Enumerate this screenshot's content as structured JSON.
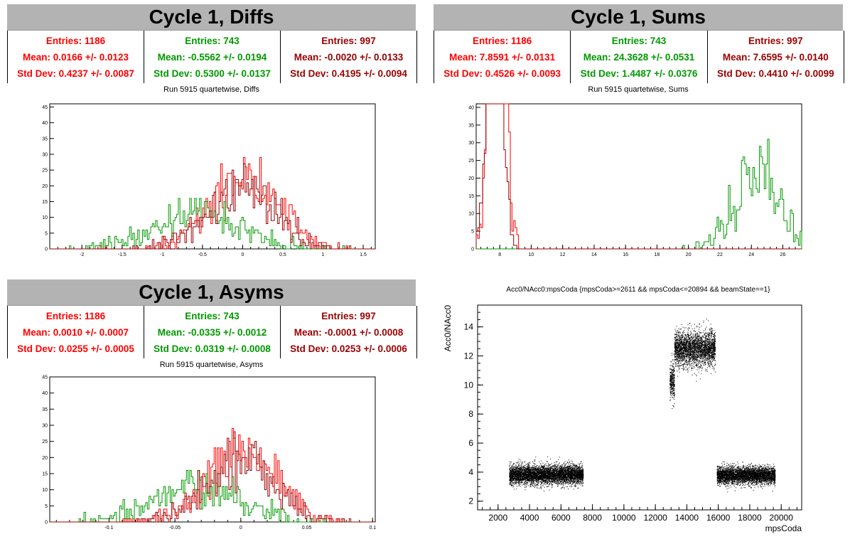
{
  "panels": {
    "diffs": {
      "title": "Cycle 1, Diffs",
      "subtitle": "Run 5915 quartetwise, Diffs",
      "stats": [
        {
          "entries": "Entries: 1186",
          "mean": "Mean: 0.0166 +/- 0.0123",
          "std": "Std Dev: 0.4237 +/- 0.0087",
          "color": "#ff0000"
        },
        {
          "entries": "Entries: 743",
          "mean": "Mean: -0.5562 +/- 0.0194",
          "std": "Std Dev: 0.5300 +/- 0.0137",
          "color": "#009900"
        },
        {
          "entries": "Entries: 997",
          "mean": "Mean: -0.0020 +/- 0.0133",
          "std": "Std Dev: 0.4195 +/- 0.0094",
          "color": "#990000"
        }
      ]
    },
    "sums": {
      "title": "Cycle 1, Sums",
      "subtitle": "Run 5915 quartetwise, Sums",
      "stats": [
        {
          "entries": "Entries: 1186",
          "mean": "Mean: 7.8591 +/- 0.0131",
          "std": "Std Dev: 0.4526 +/- 0.0093",
          "color": "#ff0000"
        },
        {
          "entries": "Entries: 743",
          "mean": "Mean: 24.3628 +/- 0.0531",
          "std": "Std Dev: 1.4487 +/- 0.0376",
          "color": "#009900"
        },
        {
          "entries": "Entries: 997",
          "mean": "Mean: 7.6595 +/- 0.0140",
          "std": "Std Dev: 0.4410 +/- 0.0099",
          "color": "#990000"
        }
      ]
    },
    "asyms": {
      "title": "Cycle 1, Asyms",
      "subtitle": "Run 5915 quartetwise, Asyms",
      "stats": [
        {
          "entries": "Entries: 1186",
          "mean": "Mean: 0.0010 +/- 0.0007",
          "std": "Std Dev: 0.0255 +/- 0.0005",
          "color": "#ff0000"
        },
        {
          "entries": "Entries: 743",
          "mean": "Mean: -0.0335 +/- 0.0012",
          "std": "Std Dev: 0.0319 +/- 0.0008",
          "color": "#009900"
        },
        {
          "entries": "Entries: 997",
          "mean": "Mean: -0.0001 +/- 0.0008",
          "std": "Std Dev: 0.0253 +/- 0.0006",
          "color": "#990000"
        }
      ]
    },
    "scatter": {
      "title": "Acc0/NAcc0:mpsCoda {mpsCoda>=2611 && mpsCoda<=20894 && beamState==1}"
    }
  },
  "chart_data": [
    {
      "type": "bar",
      "id": "diffs",
      "title": "Run 5915 quartetwise, Diffs",
      "xlim": [
        -2.4,
        1.65
      ],
      "ylim": [
        0,
        46
      ],
      "xticks": [
        -2,
        -1.5,
        -1,
        -0.5,
        0,
        0.5,
        1,
        1.5
      ],
      "xtick_labels": [
        "-2",
        "-1.5",
        "-1",
        "-0.5",
        "0",
        "0.5",
        "1",
        "1.5"
      ],
      "yticks": [
        0,
        5,
        10,
        15,
        20,
        25,
        30,
        35,
        40,
        45
      ],
      "series": [
        {
          "mean": 0.0166,
          "std": 0.4237,
          "entries": 1186,
          "color": "#ff0000"
        },
        {
          "mean": -0.5562,
          "std": 0.53,
          "entries": 743,
          "color": "#009900"
        },
        {
          "mean": -0.002,
          "std": 0.4195,
          "entries": 997,
          "color": "#990000"
        }
      ]
    },
    {
      "type": "bar",
      "id": "sums",
      "title": "Run 5915 quartetwise, Sums",
      "xlim": [
        6.5,
        27.2
      ],
      "ylim": [
        0,
        41
      ],
      "xticks": [
        8,
        10,
        12,
        14,
        16,
        18,
        20,
        22,
        24,
        26
      ],
      "xtick_labels": [
        "8",
        "10",
        "12",
        "14",
        "16",
        "18",
        "20",
        "22",
        "24",
        "26"
      ],
      "yticks": [
        0,
        5,
        10,
        15,
        20,
        25,
        30,
        35,
        40
      ],
      "series": [
        {
          "mean": 7.8591,
          "std": 0.4526,
          "entries": 1186,
          "color": "#ff0000"
        },
        {
          "mean": 24.3628,
          "std": 1.4487,
          "entries": 743,
          "color": "#009900"
        },
        {
          "mean": 7.6595,
          "std": 0.441,
          "entries": 997,
          "color": "#990000"
        }
      ]
    },
    {
      "type": "bar",
      "id": "asyms",
      "title": "Run 5915 quartetwise, Asyms",
      "xlim": [
        -0.145,
        0.102
      ],
      "ylim": [
        0,
        45
      ],
      "xticks": [
        -0.1,
        -0.05,
        0,
        0.05,
        0.1
      ],
      "xtick_labels": [
        "-0.1",
        "-0.05",
        "0",
        "0.05",
        "0.1"
      ],
      "yticks": [
        0,
        5,
        10,
        15,
        20,
        25,
        30,
        35,
        40,
        45
      ],
      "series": [
        {
          "mean": 0.001,
          "std": 0.0255,
          "entries": 1186,
          "color": "#ff0000"
        },
        {
          "mean": -0.0335,
          "std": 0.0319,
          "entries": 743,
          "color": "#009900"
        },
        {
          "mean": -0.0001,
          "std": 0.0253,
          "entries": 997,
          "color": "#990000"
        }
      ]
    },
    {
      "type": "scatter",
      "id": "scatter",
      "title": "Acc0/NAcc0:mpsCoda {mpsCoda>=2611 && mpsCoda<=20894 && beamState==1}",
      "xlabel": "mpsCoda",
      "ylabel": "Acc0/NAcc0",
      "xlim": [
        700,
        21300
      ],
      "ylim": [
        1.4,
        15.5
      ],
      "xticks": [
        2000,
        4000,
        6000,
        8000,
        10000,
        12000,
        14000,
        16000,
        18000,
        20000
      ],
      "xtick_labels": [
        "2000",
        "4000",
        "6000",
        "8000",
        "10000",
        "12000",
        "14000",
        "16000",
        "18000",
        "20000"
      ],
      "yticks": [
        2,
        4,
        6,
        8,
        10,
        12,
        14
      ],
      "ytick_labels": [
        "2",
        "4",
        "6",
        "8",
        "10",
        "12",
        "14"
      ],
      "clusters": [
        {
          "xrange": [
            2700,
            7400
          ],
          "ymean": 3.85,
          "ystd": 0.32
        },
        {
          "xrange": [
            12900,
            13200
          ],
          "ymean": 10.3,
          "ystd": 0.6
        },
        {
          "xrange": [
            13200,
            15800
          ],
          "ymean": 12.5,
          "ystd": 0.6
        },
        {
          "xrange": [
            15900,
            19600
          ],
          "ymean": 3.8,
          "ystd": 0.3
        }
      ]
    }
  ]
}
